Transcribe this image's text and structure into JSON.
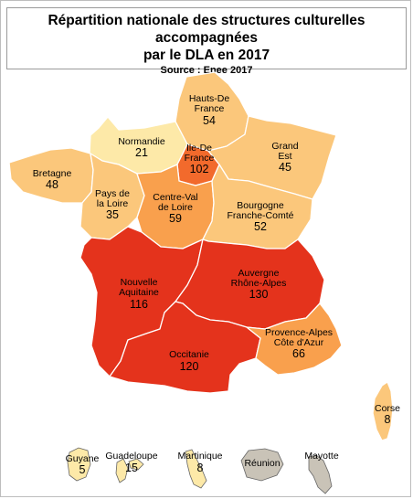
{
  "title": {
    "line1": "Répartition nationale des structures culturelles accompagnées",
    "line2": "par le DLA en 2017",
    "source": "Source : Enee 2017"
  },
  "colors": {
    "lightest": "#fde9a8",
    "light": "#fbc77b",
    "medium": "#f9a04d",
    "dark_orange": "#f26a2c",
    "red": "#e4331c",
    "grey": "#c9c3b7"
  },
  "regions": [
    {
      "key": "hdf",
      "name": [
        "Hauts-De",
        "France"
      ],
      "value": "54"
    },
    {
      "key": "normandie",
      "name": [
        "Normandie"
      ],
      "value": "21"
    },
    {
      "key": "idf",
      "name": [
        "Ile-De",
        "France"
      ],
      "value": "102"
    },
    {
      "key": "grandest",
      "name": [
        "Grand",
        "Est"
      ],
      "value": "45"
    },
    {
      "key": "bretagne",
      "name": [
        "Bretagne"
      ],
      "value": "48"
    },
    {
      "key": "pdl",
      "name": [
        "Pays de",
        "la Loire"
      ],
      "value": "35"
    },
    {
      "key": "cvl",
      "name": [
        "Centre-Val",
        "de Loire"
      ],
      "value": "59"
    },
    {
      "key": "bfc",
      "name": [
        "Bourgogne",
        "Franche-Comté"
      ],
      "value": "52"
    },
    {
      "key": "na",
      "name": [
        "Nouvelle",
        "Aquitaine"
      ],
      "value": "116"
    },
    {
      "key": "ara",
      "name": [
        "Auvergne",
        "Rhône-Alpes"
      ],
      "value": "130"
    },
    {
      "key": "occ",
      "name": [
        "Occitanie"
      ],
      "value": "120"
    },
    {
      "key": "paca",
      "name": [
        "Provence-Alpes",
        "Côte d'Azur"
      ],
      "value": "66"
    },
    {
      "key": "corse",
      "name": [
        "Corse"
      ],
      "value": "8"
    },
    {
      "key": "guyane",
      "name": [
        "Guyane"
      ],
      "value": "5"
    },
    {
      "key": "guadeloupe",
      "name": [
        "Guadeloupe"
      ],
      "value": "15"
    },
    {
      "key": "martinique",
      "name": [
        "Martinique"
      ],
      "value": "8"
    },
    {
      "key": "reunion",
      "name": [
        "Réunion"
      ],
      "value": ""
    },
    {
      "key": "mayotte",
      "name": [
        "Mayotte"
      ],
      "value": ""
    }
  ]
}
